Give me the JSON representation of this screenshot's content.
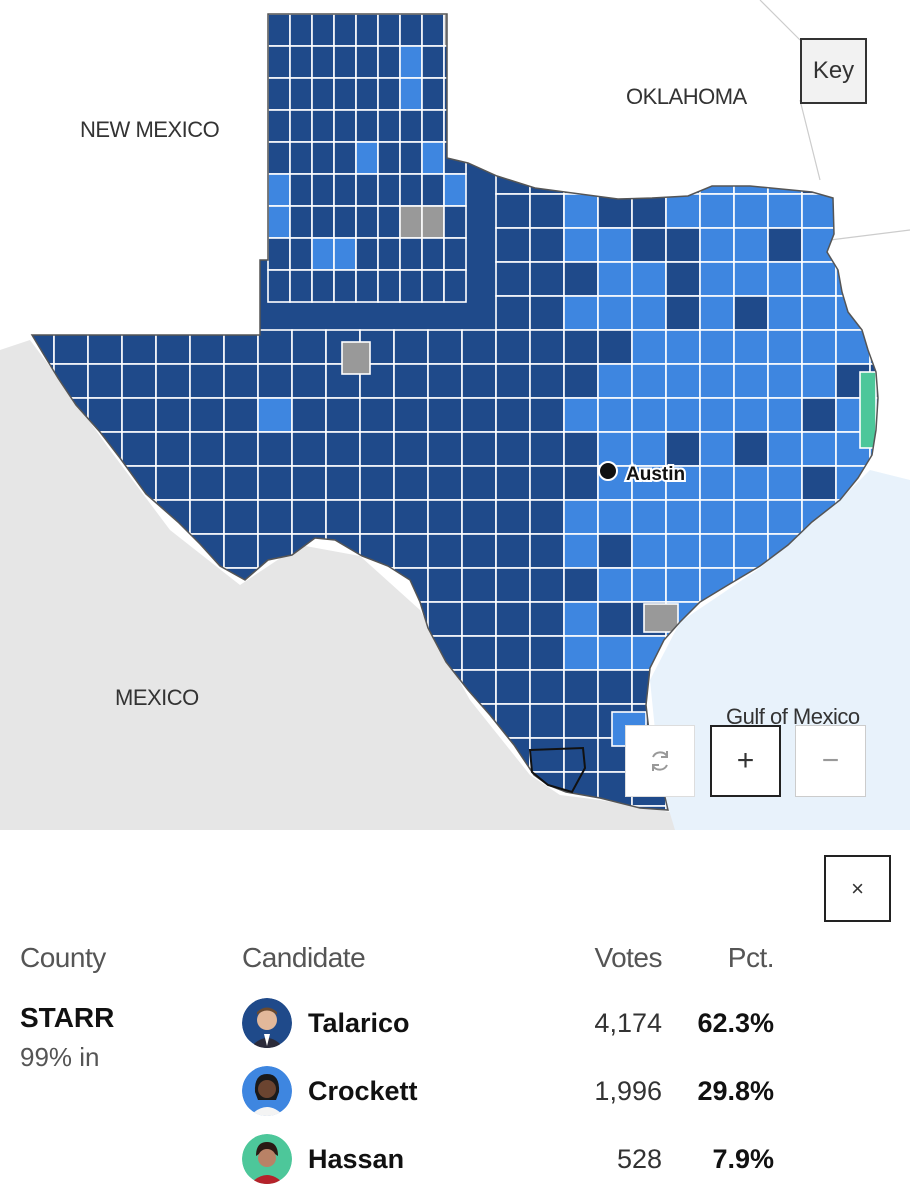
{
  "map": {
    "labels": {
      "new_mexico": "NEW MEXICO",
      "oklahoma": "OKLAHOMA",
      "mexico": "MEXICO",
      "gulf": "Gulf of Mexico",
      "city": "Austin"
    },
    "colors": {
      "talarico": "#1f4a8a",
      "crockett": "#3e86e0",
      "hassan": "#4dc79a",
      "no_results": "#999999",
      "land": "#e6e6e6",
      "water": "#e8f2fb"
    }
  },
  "controls": {
    "key_label": "Key",
    "reset_icon": "refresh-icon",
    "zoom_in_label": "+",
    "zoom_out_label": "−",
    "close_label": "×"
  },
  "results": {
    "headers": {
      "county": "County",
      "candidate": "Candidate",
      "votes": "Votes",
      "pct": "Pct."
    },
    "county": "STARR",
    "reporting": "99% in",
    "rows": [
      {
        "name": "Talarico",
        "votes": "4,174",
        "pct": "62.3%",
        "color": "#1f4a8a"
      },
      {
        "name": "Crockett",
        "votes": "1,996",
        "pct": "29.8%",
        "color": "#3e86e0"
      },
      {
        "name": "Hassan",
        "votes": "528",
        "pct": "7.9%",
        "color": "#4dc79a"
      }
    ]
  }
}
